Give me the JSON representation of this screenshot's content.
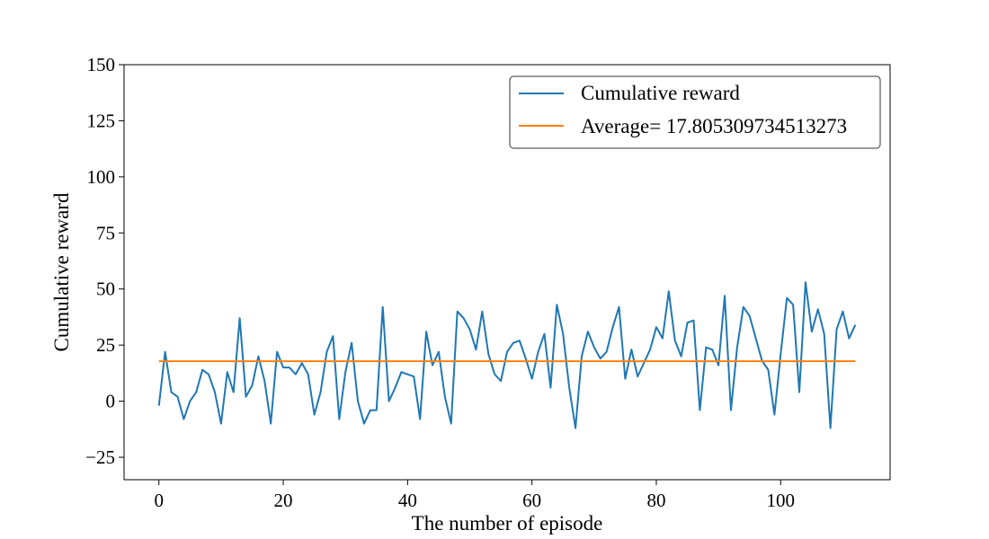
{
  "chart_data": {
    "type": "line",
    "xlabel": "The number of episode",
    "ylabel": "Cumulative reward",
    "xlim": [
      -5.6,
      117.6
    ],
    "ylim": [
      -35,
      150
    ],
    "x_ticks": [
      0,
      20,
      40,
      60,
      80,
      100
    ],
    "x_tick_labels": [
      "0",
      "20",
      "40",
      "60",
      "80",
      "100"
    ],
    "y_ticks": [
      -25,
      0,
      25,
      50,
      75,
      100,
      125,
      150
    ],
    "y_tick_labels": [
      "−25",
      "0",
      "25",
      "50",
      "75",
      "100",
      "125",
      "150"
    ],
    "grid": false,
    "legend_position": "top-right",
    "series": [
      {
        "name": "Cumulative reward",
        "color": "#1f77b4",
        "x": [
          0,
          1,
          2,
          3,
          4,
          5,
          6,
          7,
          8,
          9,
          10,
          11,
          12,
          13,
          14,
          15,
          16,
          17,
          18,
          19,
          20,
          21,
          22,
          23,
          24,
          25,
          26,
          27,
          28,
          29,
          30,
          31,
          32,
          33,
          34,
          35,
          36,
          37,
          38,
          39,
          40,
          41,
          42,
          43,
          44,
          45,
          46,
          47,
          48,
          49,
          50,
          51,
          52,
          53,
          54,
          55,
          56,
          57,
          58,
          59,
          60,
          61,
          62,
          63,
          64,
          65,
          66,
          67,
          68,
          69,
          70,
          71,
          72,
          73,
          74,
          75,
          76,
          77,
          78,
          79,
          80,
          81,
          82,
          83,
          84,
          85,
          86,
          87,
          88,
          89,
          90,
          91,
          92,
          93,
          94,
          95,
          96,
          97,
          98,
          99,
          100,
          101,
          102,
          103,
          104,
          105,
          106,
          107,
          108,
          109,
          110,
          111,
          112
        ],
        "values": [
          -2,
          22,
          4,
          2,
          -8,
          0,
          4,
          14,
          12,
          4,
          -10,
          13,
          4,
          37,
          2,
          7,
          20,
          9,
          -10,
          22,
          15,
          15,
          12,
          17,
          12,
          -6,
          4,
          22,
          29,
          -8,
          13,
          26,
          0,
          -10,
          -4,
          -4,
          42,
          0,
          6,
          13,
          12,
          11,
          -8,
          31,
          16,
          22,
          2,
          -10,
          40,
          37,
          32,
          23,
          40,
          21,
          12,
          9,
          22,
          26,
          27,
          19,
          10,
          22,
          30,
          6,
          43,
          30,
          6,
          -12,
          20,
          31,
          24,
          19,
          22,
          33,
          42,
          10,
          23,
          11,
          17,
          23,
          33,
          28,
          49,
          27,
          20,
          35,
          36,
          -4,
          24,
          23,
          16,
          47,
          -4,
          24,
          42,
          38,
          28,
          18,
          14,
          -6,
          21,
          46,
          43,
          4,
          53,
          31,
          41,
          30,
          -12,
          32,
          40,
          28,
          34
        ]
      },
      {
        "name": "Average= 17.805309734513273",
        "color": "#ff7f0e",
        "x": [
          0,
          112
        ],
        "values": [
          17.805309734513273,
          17.805309734513273
        ]
      }
    ]
  }
}
